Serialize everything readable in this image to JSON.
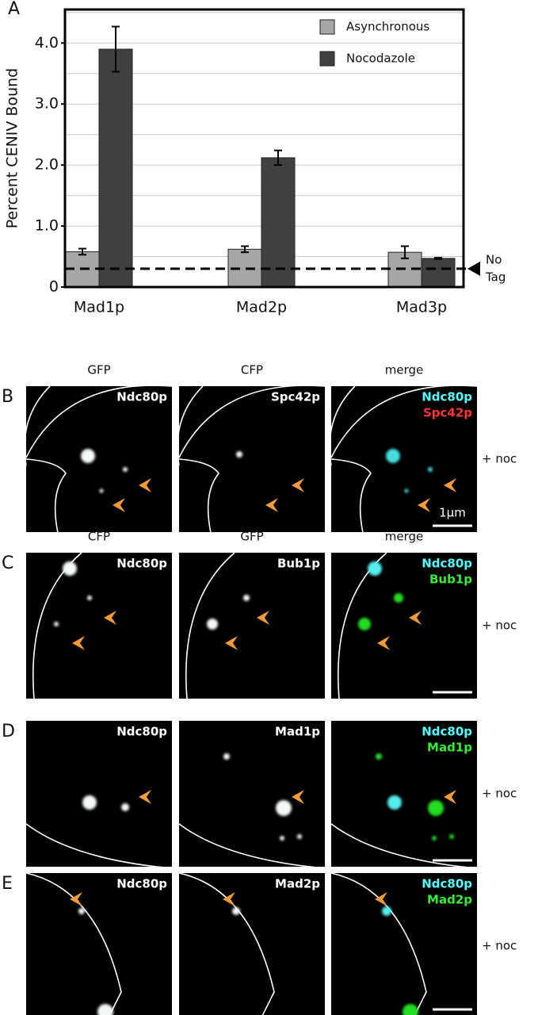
{
  "chart_data": {
    "type": "bar",
    "panel": "A",
    "ylabel": "Percent CENIV Bound",
    "categories": [
      "Mad1p",
      "Mad2p",
      "Mad3p"
    ],
    "series": [
      {
        "name": "Asynchronous",
        "color": "#a6a6a6",
        "values": [
          0.58,
          0.62,
          0.57
        ],
        "errors": [
          0.05,
          0.05,
          0.1
        ]
      },
      {
        "name": "Nocodazole",
        "color": "#404040",
        "values": [
          3.9,
          2.12,
          0.47
        ],
        "errors": [
          0.37,
          0.12,
          0.01
        ]
      }
    ],
    "ylim": [
      0,
      4.55
    ],
    "yticks": [
      0,
      {
        "value": 1,
        "label": "1.0"
      },
      {
        "value": 2,
        "label": "2.0"
      },
      {
        "value": 3,
        "label": "3.0"
      },
      {
        "value": 4,
        "label": "4.0"
      }
    ],
    "grid_lines": [
      0.5,
      1,
      1.5,
      2,
      2.5,
      3,
      3.5,
      4,
      4.5
    ],
    "grid": true,
    "legend": "upper right",
    "reference_line": {
      "value": 0.3,
      "label_lines": [
        "No",
        "Tag"
      ]
    }
  },
  "panels": [
    {
      "letter": "B",
      "columns": [
        "GFP",
        "CFP",
        "merge"
      ],
      "labels": [
        [
          "Ndc80p"
        ],
        [
          "Spc42p"
        ],
        [
          "Ndc80p",
          "Spc42p"
        ]
      ],
      "condition": "+ noc",
      "scale": "1μm"
    },
    {
      "letter": "C",
      "columns": [
        "CFP",
        "GFP",
        "merge"
      ],
      "labels": [
        [
          "Ndc80p"
        ],
        [
          "Bub1p"
        ],
        [
          "Ndc80p",
          "Bub1p"
        ]
      ],
      "condition": "+ noc"
    },
    {
      "letter": "D",
      "labels": [
        [
          "Ndc80p"
        ],
        [
          "Mad1p"
        ],
        [
          "Ndc80p",
          "Mad1p"
        ]
      ],
      "condition": "+ noc"
    },
    {
      "letter": "E",
      "labels": [
        [
          "Ndc80p"
        ],
        [
          "Mad2p"
        ],
        [
          "Ndc80p",
          "Mad2p"
        ]
      ],
      "condition": "+ noc"
    }
  ]
}
